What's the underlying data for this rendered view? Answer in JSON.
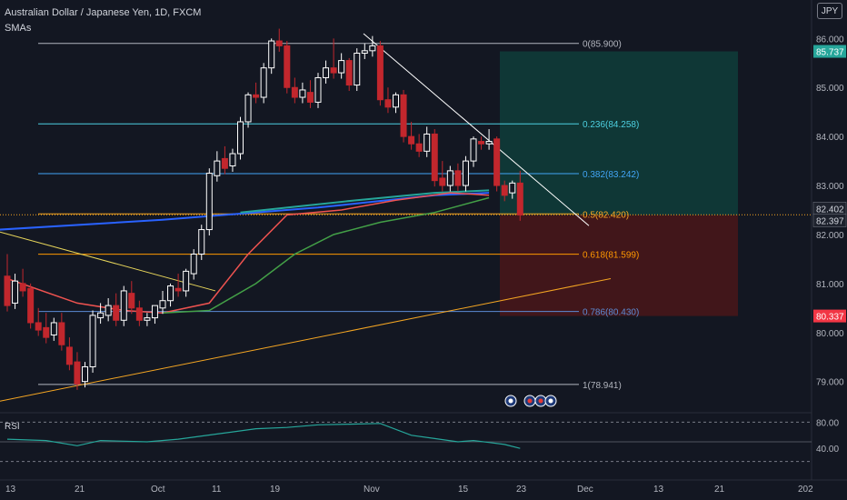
{
  "header": {
    "symbol_title": "Australian Dollar / Japanese Yen, 1D, FXCM",
    "indicator_label": "SMAs",
    "currency_badge": "JPY"
  },
  "rsi_panel": {
    "label": "RSI",
    "axis_ticks": [
      "80.00",
      "40.00"
    ]
  },
  "colors": {
    "background": "#131722",
    "up_candle": "#ffffff",
    "down_candle": "#c2272d",
    "sma_fast": "#ef5350",
    "sma_mid": "#26a69a",
    "sma_slow": "#2962ff",
    "sma_green": "#43a047",
    "trendline_yellow": "#e6d45a",
    "trendline_orange": "#f5a623",
    "rsi_line": "#26a69a",
    "target_zone": "#0f3d3a",
    "stop_zone": "#4a1619"
  },
  "chart_data": {
    "type": "candlestick",
    "title": "Australian Dollar / Japanese Yen, 1D, FXCM",
    "ylim": [
      78.4,
      86.6
    ],
    "y_ticks": [
      "86.000",
      "85.000",
      "84.000",
      "83.000",
      "82.000",
      "81.000",
      "80.000",
      "79.000"
    ],
    "x_tick_labels": [
      "13",
      "21",
      "Oct",
      "11",
      "19",
      "Nov",
      "15",
      "23",
      "Dec",
      "13",
      "21",
      "202"
    ],
    "price_tags": [
      {
        "value": 85.737,
        "label": "85.737",
        "style": "green"
      },
      {
        "value": 82.402,
        "label": "82.402",
        "style": "dark"
      },
      {
        "value": 82.397,
        "label": "82.397",
        "style": "dark"
      },
      {
        "value": 80.337,
        "label": "80.337",
        "style": "red"
      }
    ],
    "fibonacci": [
      {
        "ratio": 0,
        "label": "0(85.900)",
        "value": 85.9,
        "color": "#b2b5be"
      },
      {
        "ratio": 0.236,
        "label": "0.236(84.258)",
        "value": 84.258,
        "color": "#4dd0e1"
      },
      {
        "ratio": 0.382,
        "label": "0.382(83.242)",
        "value": 83.242,
        "color": "#42a5f5"
      },
      {
        "ratio": 0.5,
        "label": "0.5(82.420)",
        "value": 82.42,
        "color": "#f5a623"
      },
      {
        "ratio": 0.618,
        "label": "0.618(81.599)",
        "value": 81.599,
        "color": "#ff9800"
      },
      {
        "ratio": 0.786,
        "label": "0.786(80.430)",
        "value": 80.43,
        "color": "#5c8cd6"
      },
      {
        "ratio": 1,
        "label": "1(78.941)",
        "value": 78.941,
        "color": "#b2b5be"
      }
    ],
    "position": {
      "entry": 82.397,
      "target": 85.737,
      "stop": 80.337
    },
    "candles": [
      {
        "o": 81.15,
        "h": 81.6,
        "c": 80.55
      },
      {
        "o": 80.6,
        "h": 81.2,
        "c": 81.05
      },
      {
        "o": 81.0,
        "h": 81.3,
        "c": 80.85
      },
      {
        "o": 80.9,
        "h": 81.0,
        "c": 80.2
      },
      {
        "o": 80.2,
        "h": 80.5,
        "c": 80.05
      },
      {
        "o": 80.1,
        "h": 80.4,
        "c": 79.9
      },
      {
        "o": 79.95,
        "h": 80.3,
        "c": 80.2
      },
      {
        "o": 80.2,
        "h": 80.4,
        "c": 79.75
      },
      {
        "o": 79.7,
        "h": 79.9,
        "c": 79.35
      },
      {
        "o": 79.4,
        "h": 79.6,
        "c": 78.95
      },
      {
        "o": 79.0,
        "h": 79.4,
        "c": 79.3
      },
      {
        "o": 79.3,
        "h": 80.45,
        "c": 80.35
      },
      {
        "o": 80.3,
        "h": 80.6,
        "c": 80.4
      },
      {
        "o": 80.35,
        "h": 80.7,
        "c": 80.55
      },
      {
        "o": 80.55,
        "h": 80.8,
        "c": 80.25
      },
      {
        "o": 80.25,
        "h": 80.95,
        "c": 80.85
      },
      {
        "o": 80.8,
        "h": 81.05,
        "c": 80.5
      },
      {
        "o": 80.5,
        "h": 80.65,
        "c": 80.25
      },
      {
        "o": 80.25,
        "h": 80.4,
        "c": 80.3
      },
      {
        "o": 80.3,
        "h": 80.55,
        "c": 80.55
      },
      {
        "o": 80.5,
        "h": 80.85,
        "c": 80.65
      },
      {
        "o": 80.65,
        "h": 81.0,
        "c": 80.95
      },
      {
        "o": 80.9,
        "h": 81.2,
        "c": 80.85
      },
      {
        "o": 80.85,
        "h": 81.3,
        "c": 81.25
      },
      {
        "o": 81.2,
        "h": 81.7,
        "c": 81.6
      },
      {
        "o": 81.6,
        "h": 82.2,
        "c": 82.1
      },
      {
        "o": 82.1,
        "h": 83.35,
        "c": 83.25
      },
      {
        "o": 83.2,
        "h": 83.7,
        "c": 83.5
      },
      {
        "o": 83.55,
        "h": 83.8,
        "c": 83.35
      },
      {
        "o": 83.4,
        "h": 83.75,
        "c": 83.65
      },
      {
        "o": 83.65,
        "h": 84.4,
        "c": 84.3
      },
      {
        "o": 84.3,
        "h": 84.9,
        "c": 84.85
      },
      {
        "o": 84.85,
        "h": 85.1,
        "c": 84.8
      },
      {
        "o": 84.8,
        "h": 85.5,
        "c": 85.4
      },
      {
        "o": 85.4,
        "h": 86.0,
        "c": 85.95
      },
      {
        "o": 85.95,
        "h": 86.2,
        "c": 85.85
      },
      {
        "o": 85.85,
        "h": 85.95,
        "c": 85.0
      },
      {
        "o": 85.0,
        "h": 85.2,
        "c": 84.8
      },
      {
        "o": 84.8,
        "h": 85.1,
        "c": 84.95
      },
      {
        "o": 84.9,
        "h": 85.15,
        "c": 84.7
      },
      {
        "o": 84.7,
        "h": 85.3,
        "c": 85.2
      },
      {
        "o": 85.2,
        "h": 85.55,
        "c": 85.4
      },
      {
        "o": 85.4,
        "h": 86.0,
        "c": 85.3
      },
      {
        "o": 85.3,
        "h": 85.7,
        "c": 85.55
      },
      {
        "o": 85.55,
        "h": 85.6,
        "c": 85.05
      },
      {
        "o": 85.05,
        "h": 85.8,
        "c": 85.7
      },
      {
        "o": 85.7,
        "h": 85.9,
        "c": 85.75
      },
      {
        "o": 85.75,
        "h": 86.05,
        "c": 85.85
      },
      {
        "o": 85.85,
        "h": 85.95,
        "c": 84.75
      },
      {
        "o": 84.75,
        "h": 85.0,
        "c": 84.6
      },
      {
        "o": 84.6,
        "h": 84.9,
        "c": 84.85
      },
      {
        "o": 84.85,
        "h": 84.95,
        "c": 84.0
      },
      {
        "o": 84.0,
        "h": 84.3,
        "c": 83.85
      },
      {
        "o": 83.85,
        "h": 84.05,
        "c": 83.7
      },
      {
        "o": 83.7,
        "h": 84.2,
        "c": 84.05
      },
      {
        "o": 84.05,
        "h": 84.15,
        "c": 83.1
      },
      {
        "o": 83.15,
        "h": 83.5,
        "c": 83.0
      },
      {
        "o": 83.0,
        "h": 83.4,
        "c": 83.3
      },
      {
        "o": 83.3,
        "h": 83.45,
        "c": 83.0
      },
      {
        "o": 83.0,
        "h": 83.6,
        "c": 83.5
      },
      {
        "o": 83.5,
        "h": 84.0,
        "c": 83.95
      },
      {
        "o": 83.9,
        "h": 84.0,
        "c": 83.85
      },
      {
        "o": 83.85,
        "h": 84.15,
        "c": 83.9
      },
      {
        "o": 83.95,
        "h": 84.0,
        "c": 83.0
      },
      {
        "o": 83.0,
        "h": 83.1,
        "c": 82.8
      },
      {
        "o": 82.85,
        "h": 83.1,
        "c": 83.05
      },
      {
        "o": 83.05,
        "h": 83.3,
        "c": 82.4
      }
    ],
    "sma_red": [
      [
        0,
        81.1
      ],
      [
        9,
        80.6
      ],
      [
        15,
        80.45
      ],
      [
        20,
        80.4
      ],
      [
        26,
        80.6
      ],
      [
        31,
        81.6
      ],
      [
        36,
        82.4
      ],
      [
        43,
        82.5
      ],
      [
        50,
        82.7
      ],
      [
        57,
        82.85
      ],
      [
        62,
        82.8
      ]
    ],
    "sma_blue": [
      [
        -1,
        82.1
      ],
      [
        20,
        82.3
      ],
      [
        40,
        82.55
      ],
      [
        55,
        82.8
      ],
      [
        62,
        82.85
      ]
    ],
    "sma_teal": [
      [
        30,
        82.45
      ],
      [
        45,
        82.7
      ],
      [
        55,
        82.85
      ],
      [
        62,
        82.9
      ]
    ],
    "sma_green": [
      [
        20,
        80.4
      ],
      [
        26,
        80.45
      ],
      [
        32,
        81.0
      ],
      [
        37,
        81.6
      ],
      [
        42,
        82.0
      ],
      [
        48,
        82.25
      ],
      [
        55,
        82.45
      ],
      [
        62,
        82.75
      ]
    ],
    "rsi": [
      [
        0,
        54
      ],
      [
        5,
        52
      ],
      [
        9,
        44
      ],
      [
        12,
        52
      ],
      [
        18,
        50
      ],
      [
        22,
        54
      ],
      [
        27,
        62
      ],
      [
        32,
        70
      ],
      [
        36,
        72
      ],
      [
        40,
        76
      ],
      [
        44,
        77
      ],
      [
        48,
        78
      ],
      [
        52,
        60
      ],
      [
        55,
        55
      ],
      [
        58,
        50
      ],
      [
        60,
        52
      ],
      [
        62,
        49
      ],
      [
        64,
        46
      ],
      [
        66,
        40
      ]
    ]
  }
}
